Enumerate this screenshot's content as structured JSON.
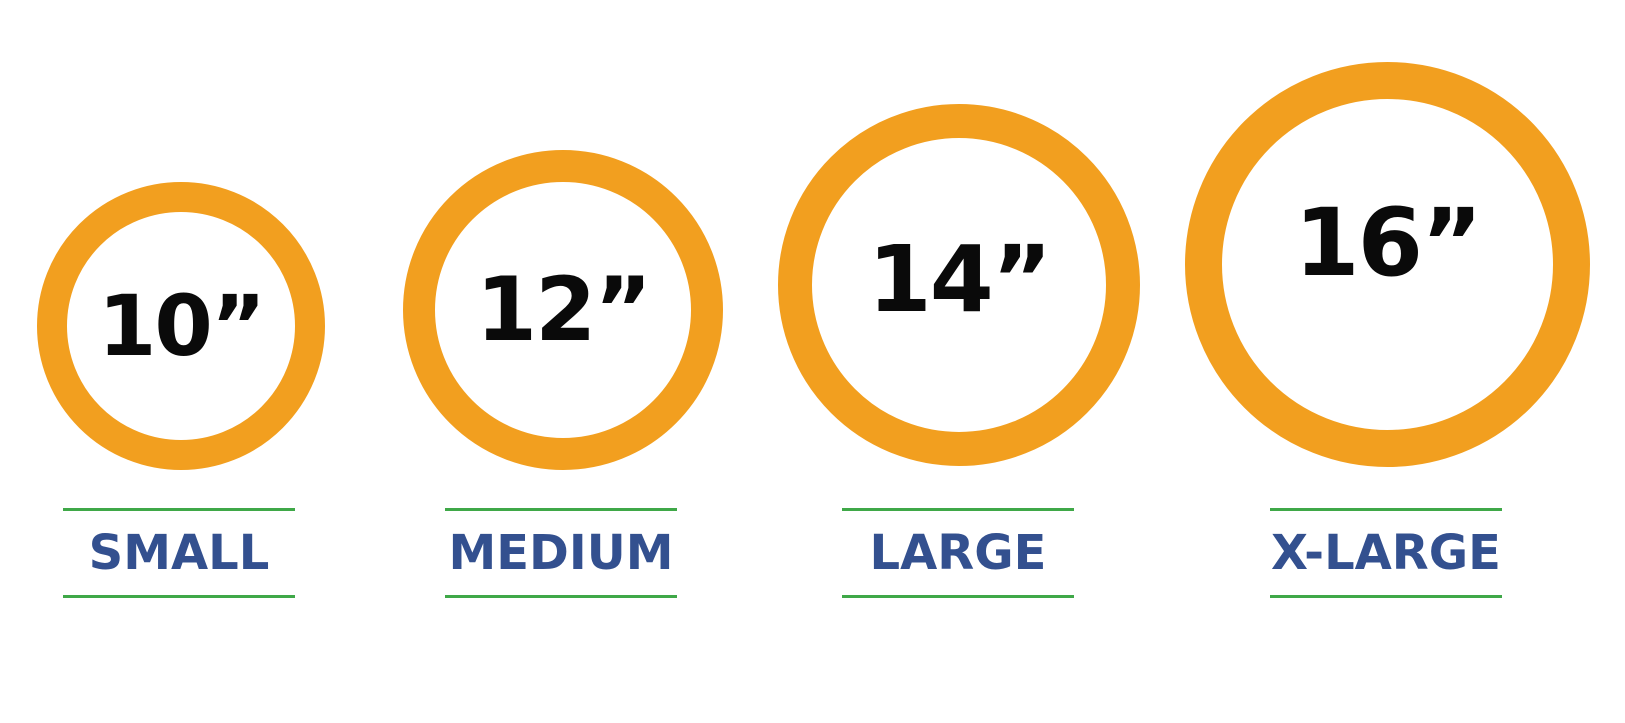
{
  "colors": {
    "ring": "#F29F1F",
    "size_value": "#0a0a0a",
    "label": "#33508F",
    "rule": "#3FA848",
    "background": "#ffffff"
  },
  "sizes": [
    {
      "value": "10”",
      "label": "SMALL"
    },
    {
      "value": "12”",
      "label": "MEDIUM"
    },
    {
      "value": "14”",
      "label": "LARGE"
    },
    {
      "value": "16”",
      "label": "X-LARGE"
    }
  ]
}
